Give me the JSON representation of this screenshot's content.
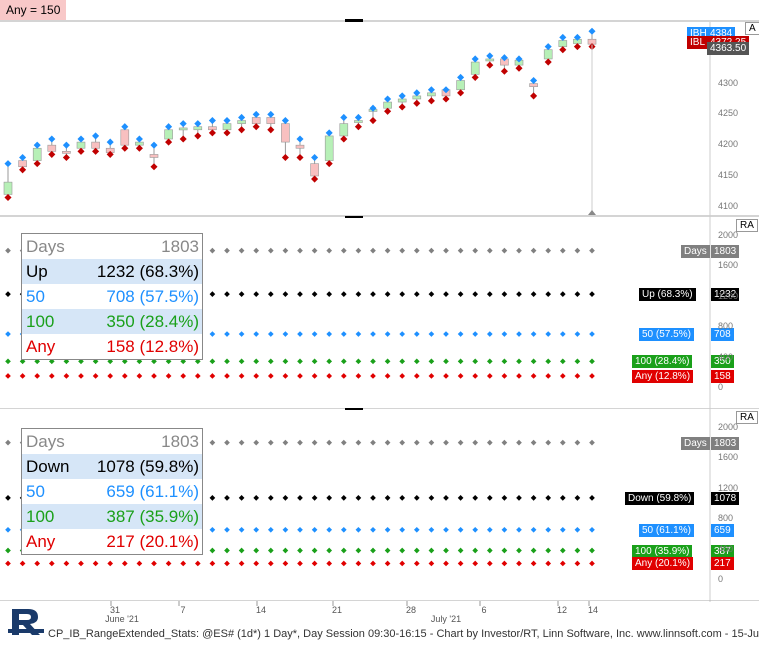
{
  "badge": {
    "text": "Any = 150"
  },
  "footer": {
    "text": "CP_IB_RangeExtended_Stats: @ES# (1d*) 1 Day*, Day Session 09:30-16:15 - Chart by Investor/RT, Linn Software, Inc. www.linnsoft.com - 15-Ju"
  },
  "price_axis": {
    "ticks": [
      "4350",
      "4300",
      "4250",
      "4200",
      "4150",
      "4100"
    ],
    "a_label": "A"
  },
  "price_tags": {
    "ibh_label": "IBH",
    "ibh_value": "4384",
    "ibl_label": "IBL",
    "ibl_value": "4372.25",
    "last_value": "4363.50"
  },
  "colors": {
    "up": "#b7f0b7",
    "down": "#f8c0c0",
    "ibh": "#1e90ff",
    "ibl": "#c00000",
    "gray": "#808080",
    "black": "#000000",
    "blue": "#1e90ff",
    "green": "#1aa01a",
    "red": "#e00000"
  },
  "stats_panes": [
    {
      "ra": "RA",
      "header": {
        "label": "Days",
        "value": "1803"
      },
      "rows": [
        {
          "label": "Up",
          "value": "1232 (68.3%)"
        },
        {
          "label": "50",
          "value": "708 (57.5%)"
        },
        {
          "label": "100",
          "value": "350 (28.4%)"
        },
        {
          "label": "Any",
          "value": "158 (12.8%)"
        }
      ],
      "axis_ticks": [
        "2000",
        "1600",
        "1200",
        "800",
        "400",
        "0"
      ],
      "tags": [
        {
          "label": "Days",
          "value": "1803"
        },
        {
          "label": "Up (68.3%)",
          "value": "1232"
        },
        {
          "label": "50 (57.5%)",
          "value": "708"
        },
        {
          "label": "100 (28.4%)",
          "value": "350"
        },
        {
          "label": "Any (12.8%)",
          "value": "158"
        }
      ]
    },
    {
      "ra": "RA",
      "header": {
        "label": "Days",
        "value": "1803"
      },
      "rows": [
        {
          "label": "Down",
          "value": "1078 (59.8%)"
        },
        {
          "label": "50",
          "value": "659 (61.1%)"
        },
        {
          "label": "100",
          "value": "387 (35.9%)"
        },
        {
          "label": "Any",
          "value": "217 (20.1%)"
        }
      ],
      "axis_ticks": [
        "2000",
        "1600",
        "1200",
        "800",
        "400",
        "0"
      ],
      "tags": [
        {
          "label": "Days",
          "value": "1803"
        },
        {
          "label": "Down (59.8%)",
          "value": "1078"
        },
        {
          "label": "50 (61.1%)",
          "value": "659"
        },
        {
          "label": "100 (35.9%)",
          "value": "387"
        },
        {
          "label": "Any (20.1%)",
          "value": "217"
        }
      ]
    }
  ],
  "chart_data": {
    "type": "candlestick",
    "x_labels": [
      "31",
      "June '21",
      "7",
      "14",
      "21",
      "28",
      "July '21",
      "6",
      "12",
      "14"
    ],
    "ylim": [
      4100,
      4400
    ],
    "candles": [
      {
        "o": 4120,
        "h": 4170,
        "l": 4115,
        "c": 4140
      },
      {
        "o": 4175,
        "h": 4180,
        "l": 4160,
        "c": 4165
      },
      {
        "o": 4175,
        "h": 4200,
        "l": 4170,
        "c": 4195
      },
      {
        "o": 4200,
        "h": 4210,
        "l": 4185,
        "c": 4190
      },
      {
        "o": 4190,
        "h": 4200,
        "l": 4180,
        "c": 4188
      },
      {
        "o": 4195,
        "h": 4210,
        "l": 4190,
        "c": 4205
      },
      {
        "o": 4205,
        "h": 4215,
        "l": 4190,
        "c": 4195
      },
      {
        "o": 4195,
        "h": 4205,
        "l": 4185,
        "c": 4188
      },
      {
        "o": 4225,
        "h": 4230,
        "l": 4195,
        "c": 4200
      },
      {
        "o": 4200,
        "h": 4210,
        "l": 4195,
        "c": 4205
      },
      {
        "o": 4185,
        "h": 4200,
        "l": 4165,
        "c": 4180
      },
      {
        "o": 4210,
        "h": 4230,
        "l": 4205,
        "c": 4225
      },
      {
        "o": 4225,
        "h": 4235,
        "l": 4210,
        "c": 4228
      },
      {
        "o": 4225,
        "h": 4235,
        "l": 4215,
        "c": 4230
      },
      {
        "o": 4230,
        "h": 4240,
        "l": 4220,
        "c": 4225
      },
      {
        "o": 4225,
        "h": 4240,
        "l": 4220,
        "c": 4235
      },
      {
        "o": 4235,
        "h": 4245,
        "l": 4225,
        "c": 4240
      },
      {
        "o": 4245,
        "h": 4250,
        "l": 4230,
        "c": 4235
      },
      {
        "o": 4245,
        "h": 4250,
        "l": 4225,
        "c": 4235
      },
      {
        "o": 4235,
        "h": 4240,
        "l": 4180,
        "c": 4205
      },
      {
        "o": 4200,
        "h": 4210,
        "l": 4180,
        "c": 4195
      },
      {
        "o": 4170,
        "h": 4180,
        "l": 4145,
        "c": 4150
      },
      {
        "o": 4175,
        "h": 4220,
        "l": 4170,
        "c": 4215
      },
      {
        "o": 4215,
        "h": 4245,
        "l": 4210,
        "c": 4235
      },
      {
        "o": 4240,
        "h": 4245,
        "l": 4230,
        "c": 4240
      },
      {
        "o": 4255,
        "h": 4260,
        "l": 4240,
        "c": 4258
      },
      {
        "o": 4260,
        "h": 4275,
        "l": 4255,
        "c": 4270
      },
      {
        "o": 4270,
        "h": 4280,
        "l": 4262,
        "c": 4275
      },
      {
        "o": 4275,
        "h": 4285,
        "l": 4268,
        "c": 4280
      },
      {
        "o": 4280,
        "h": 4290,
        "l": 4272,
        "c": 4285
      },
      {
        "o": 4290,
        "h": 4290,
        "l": 4275,
        "c": 4280
      },
      {
        "o": 4290,
        "h": 4310,
        "l": 4285,
        "c": 4305
      },
      {
        "o": 4315,
        "h": 4340,
        "l": 4310,
        "c": 4335
      },
      {
        "o": 4338,
        "h": 4345,
        "l": 4330,
        "c": 4340
      },
      {
        "o": 4340,
        "h": 4342,
        "l": 4320,
        "c": 4330
      },
      {
        "o": 4330,
        "h": 4340,
        "l": 4325,
        "c": 4338
      },
      {
        "o": 4300,
        "h": 4305,
        "l": 4280,
        "c": 4295
      },
      {
        "o": 4340,
        "h": 4360,
        "l": 4335,
        "c": 4355
      },
      {
        "o": 4360,
        "h": 4375,
        "l": 4355,
        "c": 4370
      },
      {
        "o": 4365,
        "h": 4375,
        "l": 4360,
        "c": 4372
      },
      {
        "o": 4372,
        "h": 4385,
        "l": 4360,
        "c": 4364
      }
    ]
  }
}
